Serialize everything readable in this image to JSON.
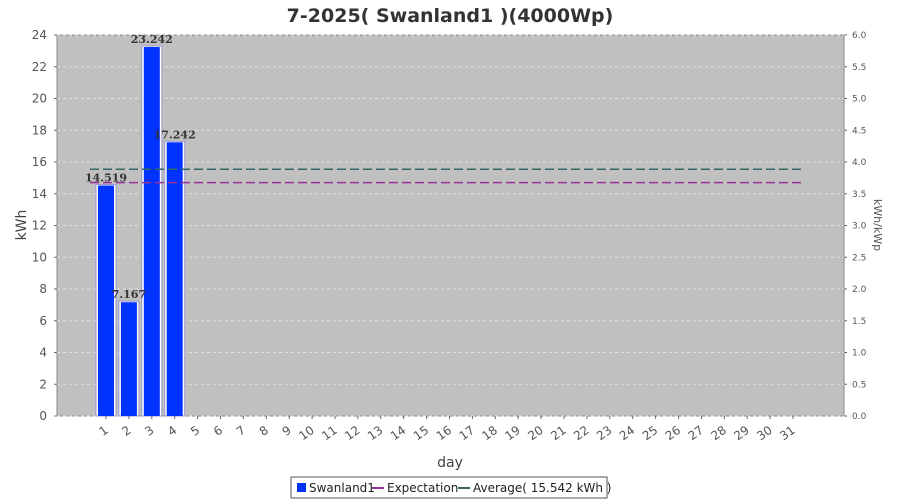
{
  "chart_data": {
    "type": "bar",
    "title": "7-2025( Swanland1 )(4000Wp)",
    "xlabel": "day",
    "ylabel": "kWh",
    "ylabel_right": "kWh/kWp",
    "categories": [
      "1",
      "2",
      "3",
      "4",
      "5",
      "6",
      "7",
      "8",
      "9",
      "10",
      "11",
      "12",
      "13",
      "14",
      "15",
      "16",
      "17",
      "18",
      "19",
      "20",
      "21",
      "22",
      "23",
      "24",
      "25",
      "26",
      "27",
      "28",
      "29",
      "30",
      "31"
    ],
    "series": [
      {
        "name": "Swanland1",
        "values": [
          14.519,
          7.167,
          23.242,
          17.242,
          0,
          0,
          0,
          0,
          0,
          0,
          0,
          0,
          0,
          0,
          0,
          0,
          0,
          0,
          0,
          0,
          0,
          0,
          0,
          0,
          0,
          0,
          0,
          0,
          0,
          0,
          0
        ],
        "data_labels": [
          "14.519",
          "7.167",
          "23.242",
          "17.242"
        ]
      }
    ],
    "lines": [
      {
        "name": "Expectation",
        "value": 14.7
      },
      {
        "name": "Average( 15.542 kWh )",
        "value": 15.542
      }
    ],
    "ylim": [
      0,
      24
    ],
    "yticks": [
      "0",
      "2",
      "4",
      "6",
      "8",
      "10",
      "12",
      "14",
      "16",
      "18",
      "20",
      "22",
      "24"
    ],
    "ylim_right": [
      0,
      6
    ],
    "yticks_right": [
      "0.0",
      "0.5",
      "1.0",
      "1.5",
      "2.0",
      "2.5",
      "3.0",
      "3.5",
      "4.0",
      "4.5",
      "5.0",
      "5.5",
      "6.0"
    ],
    "grid": true,
    "legend_position": "bottom-center",
    "colors": {
      "bar": "#0033ff",
      "bar_edge": "#9999cc",
      "expectation": "#993399",
      "average": "#336666",
      "plot_bg": "#c0c0c0",
      "grid": "#e0e0e0"
    }
  }
}
